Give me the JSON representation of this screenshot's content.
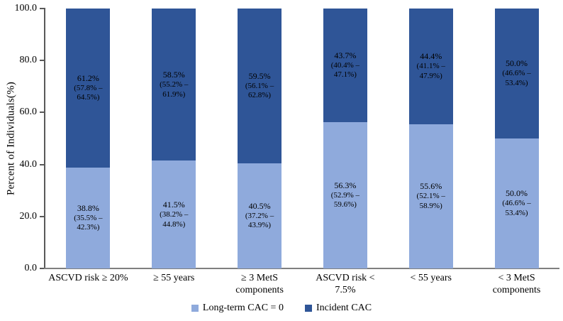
{
  "figure": {
    "background": "#ffffff",
    "axis_line_color": "#595959",
    "baseline_color": "#7f7f7f",
    "label_text_color": "#000000"
  },
  "chart_data": {
    "type": "bar",
    "stacked": true,
    "title": "",
    "xlabel": "",
    "ylabel": "Percent of Individuals(%)",
    "ylim": [
      0,
      100
    ],
    "yticks": [
      "100.0",
      "80.0",
      "60.0",
      "40.0",
      "20.0",
      "0.0"
    ],
    "grid": false,
    "legend_position": "bottom",
    "categories": [
      "ASCVD risk ≥ 20%",
      "≥ 55 years",
      "≥ 3 MetS components",
      "ASCVD risk < 7.5%",
      "< 55 years",
      "< 3 MetS components"
    ],
    "series": [
      {
        "name": "Long-term CAC = 0",
        "color": "#8FAADC",
        "values": [
          38.8,
          41.5,
          40.5,
          56.3,
          55.6,
          50.0
        ],
        "value_labels": [
          "38.8%",
          "41.5%",
          "40.5%",
          "56.3%",
          "55.6%",
          "50.0%"
        ],
        "ci_labels": [
          "(35.5% – 42.3%)",
          "(38.2% – 44.8%)",
          "(37.2% – 43.9%)",
          "(52.9% – 59.6%)",
          "(52.1% – 58.9%)",
          "(46.6% – 53.4%)"
        ]
      },
      {
        "name": "Incident CAC",
        "color": "#2F5597",
        "values": [
          61.2,
          58.5,
          59.5,
          43.7,
          44.4,
          50.0
        ],
        "value_labels": [
          "61.2%",
          "58.5%",
          "59.5%",
          "43.7%",
          "44.4%",
          "50.0%"
        ],
        "ci_labels": [
          "(57.8% – 64.5%)",
          "(55.2% – 61.9%)",
          "(56.1% – 62.8%)",
          "(40.4% – 47.1%)",
          "(41.1% – 47.9%)",
          "(46.6% – 53.4%)"
        ]
      }
    ],
    "legend": [
      {
        "label": "Long-term CAC = 0",
        "color": "#8FAADC"
      },
      {
        "label": "Incident CAC",
        "color": "#2F5597"
      }
    ]
  }
}
